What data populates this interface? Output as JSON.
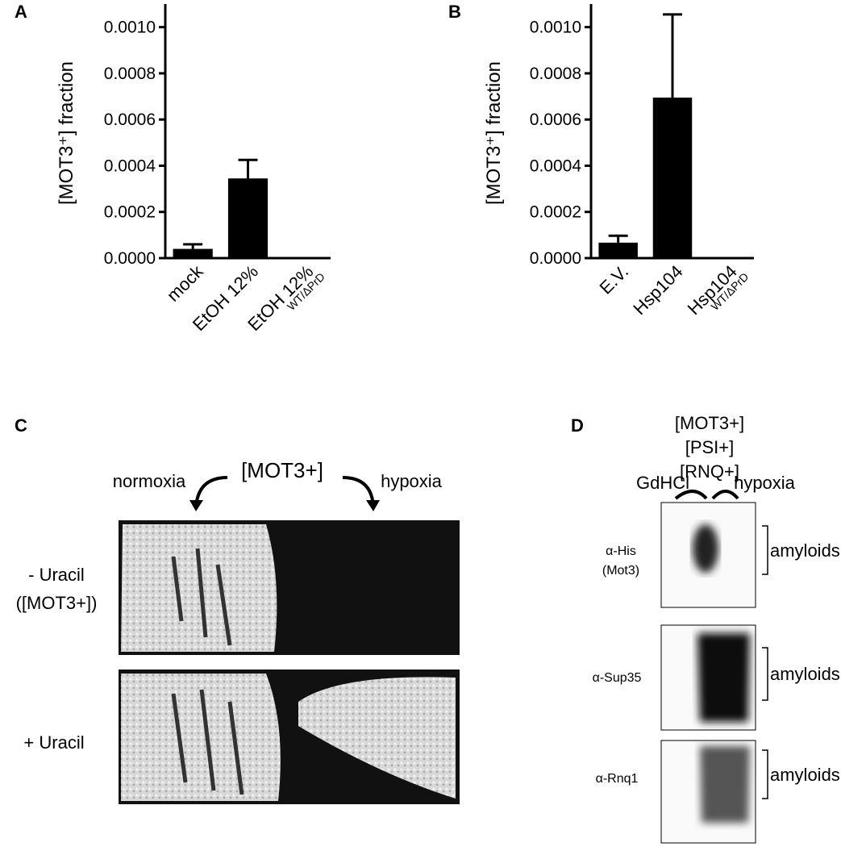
{
  "chart_data": [
    {
      "type": "bar",
      "panel": "A",
      "ylabel": "[MOT3⁺] fraction",
      "categories": [
        "mock",
        "EtOH 12%",
        "EtOH 12%"
      ],
      "category_subscripts": [
        null,
        null,
        "WT/ΔPrD"
      ],
      "series": [
        {
          "color": "#000000",
          "values": [
            4e-05,
            0.000345,
            0
          ],
          "errors": [
            2e-05,
            8e-05,
            null
          ]
        }
      ],
      "ylim": [
        0,
        0.0011
      ],
      "yticks": [
        {
          "value": 0,
          "label": "0.0000"
        },
        {
          "value": 0.0002,
          "label": "0.0002"
        },
        {
          "value": 0.0004,
          "label": "0.0004"
        },
        {
          "value": 0.0006,
          "label": "0.0006"
        },
        {
          "value": 0.0008,
          "label": "0.0008"
        },
        {
          "value": 0.001,
          "label": "0.0010"
        }
      ]
    },
    {
      "type": "bar",
      "panel": "B",
      "ylabel": "[MOT3⁺] fraction",
      "categories": [
        "E.V.",
        "Hsp104",
        "Hsp104"
      ],
      "category_subscripts": [
        null,
        null,
        "WT/ΔPrD"
      ],
      "series": [
        {
          "color": "#000000",
          "values": [
            6.7e-05,
            0.000695,
            0
          ],
          "errors": [
            3e-05,
            0.00036,
            null
          ]
        }
      ],
      "ylim": [
        0,
        0.0011
      ],
      "yticks": [
        {
          "value": 0,
          "label": "0.0000"
        },
        {
          "value": 0.0002,
          "label": "0.0002"
        },
        {
          "value": 0.0004,
          "label": "0.0004"
        },
        {
          "value": 0.0006,
          "label": "0.0006"
        },
        {
          "value": 0.0008,
          "label": "0.0008"
        },
        {
          "value": 0.001,
          "label": "0.0010"
        }
      ]
    }
  ],
  "panel_c": {
    "label": "C",
    "strain": "[MOT3+]",
    "left": "normoxia",
    "right": "hypoxia",
    "rows": [
      {
        "label": "- Uracil",
        "sublabel": "([MOT3+])"
      },
      {
        "label": "+ Uracil"
      }
    ]
  },
  "panel_d": {
    "label": "D",
    "strains": [
      "[MOT3+]",
      "[PSI+]",
      "[RNQ+]"
    ],
    "left": "GdHCl",
    "right": "hypoxia",
    "blots": [
      {
        "antibody": "α-His",
        "sublabel": "(Mot3)",
        "band": "amyloids"
      },
      {
        "antibody": "α-Sup35",
        "band": "amyloids"
      },
      {
        "antibody": "α-Rnq1",
        "band": "amyloids"
      }
    ]
  }
}
